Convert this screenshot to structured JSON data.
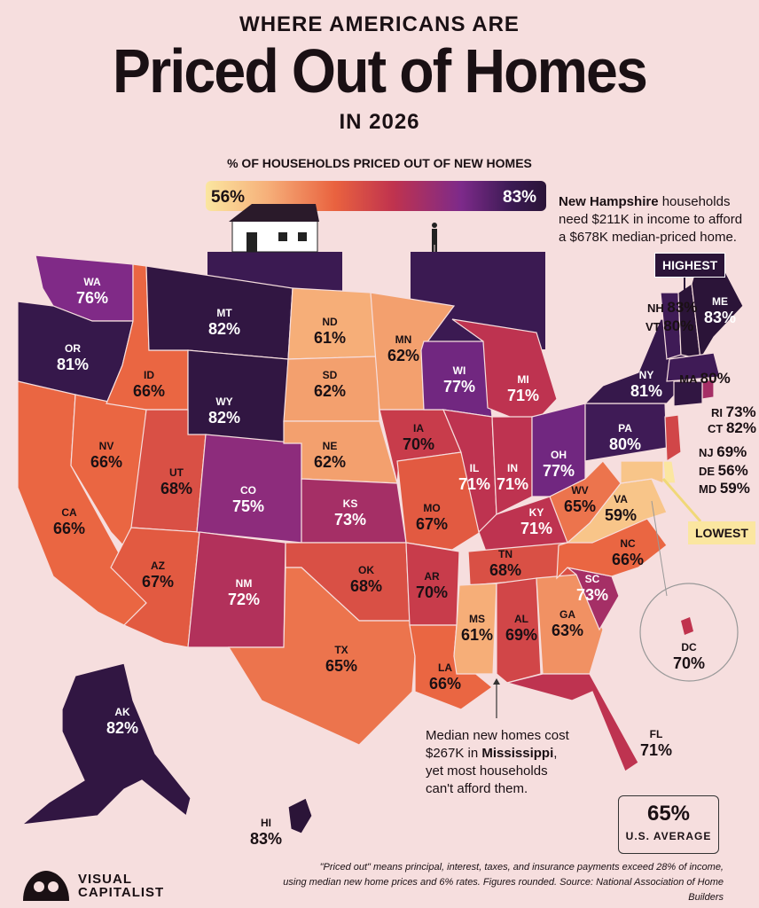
{
  "title": {
    "line1": "WHERE AMERICANS ARE",
    "line2": "Priced Out of Homes",
    "line3": "IN 2026"
  },
  "legend": {
    "title": "% OF HOUSEHOLDS PRICED OUT OF NEW HOMES",
    "min_label": "56%",
    "max_label": "83%",
    "min_value": 56,
    "max_value": 83
  },
  "callouts": {
    "nh_line1_bold": "New Hampshire",
    "nh_line1_rest": " households",
    "nh_line2": "need $211K in income to afford",
    "nh_line3": "a $678K median-priced home.",
    "highest_tag": "HIGHEST",
    "lowest_tag": "LOWEST",
    "ms_line1": "Median new homes cost",
    "ms_line2_pre": "$267K in ",
    "ms_line2_bold": "Mississippi",
    "ms_line2_post": ",",
    "ms_line3": "yet most households",
    "ms_line4": "can't afford them."
  },
  "us_average": {
    "value": "65%",
    "label": "U.S. AVERAGE"
  },
  "footer": {
    "line1": "\"Priced out\" means principal, interest, taxes, and insurance payments exceed 28% of income,",
    "line2": "using median new home prices and 6% rates. Figures rounded. Source: National Association of Home Builders"
  },
  "brand": {
    "line1": "VISUAL",
    "line2": "CAPITALIST"
  },
  "colors": {
    "background": "#f6dede",
    "lowest": "#fbe6a0",
    "highest": "#2b1438"
  },
  "chart_data": {
    "type": "choropleth",
    "value_unit": "%",
    "states": [
      {
        "abbr": "WA",
        "value": 76
      },
      {
        "abbr": "OR",
        "value": 81
      },
      {
        "abbr": "CA",
        "value": 66
      },
      {
        "abbr": "NV",
        "value": 66
      },
      {
        "abbr": "ID",
        "value": 66
      },
      {
        "abbr": "MT",
        "value": 82
      },
      {
        "abbr": "WY",
        "value": 82
      },
      {
        "abbr": "UT",
        "value": 68
      },
      {
        "abbr": "AZ",
        "value": 67
      },
      {
        "abbr": "CO",
        "value": 75
      },
      {
        "abbr": "NM",
        "value": 72
      },
      {
        "abbr": "ND",
        "value": 61
      },
      {
        "abbr": "SD",
        "value": 62
      },
      {
        "abbr": "NE",
        "value": 62
      },
      {
        "abbr": "KS",
        "value": 73
      },
      {
        "abbr": "OK",
        "value": 68
      },
      {
        "abbr": "TX",
        "value": 65
      },
      {
        "abbr": "MN",
        "value": 62
      },
      {
        "abbr": "IA",
        "value": 70
      },
      {
        "abbr": "MO",
        "value": 67
      },
      {
        "abbr": "AR",
        "value": 70
      },
      {
        "abbr": "LA",
        "value": 66
      },
      {
        "abbr": "WI",
        "value": 77
      },
      {
        "abbr": "IL",
        "value": 71
      },
      {
        "abbr": "MI",
        "value": 71
      },
      {
        "abbr": "IN",
        "value": 71
      },
      {
        "abbr": "OH",
        "value": 77
      },
      {
        "abbr": "KY",
        "value": 71
      },
      {
        "abbr": "TN",
        "value": 68
      },
      {
        "abbr": "MS",
        "value": 61
      },
      {
        "abbr": "AL",
        "value": 69
      },
      {
        "abbr": "GA",
        "value": 63
      },
      {
        "abbr": "FL",
        "value": 71
      },
      {
        "abbr": "SC",
        "value": 73
      },
      {
        "abbr": "NC",
        "value": 66
      },
      {
        "abbr": "VA",
        "value": 59
      },
      {
        "abbr": "WV",
        "value": 65
      },
      {
        "abbr": "PA",
        "value": 80
      },
      {
        "abbr": "NY",
        "value": 81
      },
      {
        "abbr": "VT",
        "value": 80
      },
      {
        "abbr": "NH",
        "value": 83
      },
      {
        "abbr": "ME",
        "value": 83
      },
      {
        "abbr": "MA",
        "value": 80
      },
      {
        "abbr": "RI",
        "value": 73
      },
      {
        "abbr": "CT",
        "value": 82
      },
      {
        "abbr": "NJ",
        "value": 69
      },
      {
        "abbr": "DE",
        "value": 56
      },
      {
        "abbr": "MD",
        "value": 59
      },
      {
        "abbr": "DC",
        "value": 70
      },
      {
        "abbr": "AK",
        "value": 82
      },
      {
        "abbr": "HI",
        "value": 83
      }
    ]
  }
}
